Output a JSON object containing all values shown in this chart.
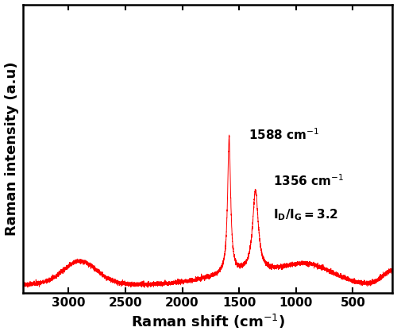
{
  "xlabel": "Raman shift (cm$^{-1}$)",
  "ylabel": "Raman intensity (a.u)",
  "xlim": [
    3400,
    150
  ],
  "line_color": "#ff0000",
  "line_width": 0.7,
  "annotation_1588": "1588 cm$^{-1}$",
  "annotation_1356": "1356 cm$^{-1}$",
  "annotation_ratio": "$\\mathregular{I_D/I_G=3.2}$",
  "G_peak": 1588,
  "D_peak": 1356,
  "noise_amplitude": 0.008,
  "background_color": "#ffffff",
  "tick_label_size": 11,
  "axis_label_size": 13,
  "xticks": [
    3000,
    2500,
    2000,
    1500,
    1000,
    500
  ]
}
